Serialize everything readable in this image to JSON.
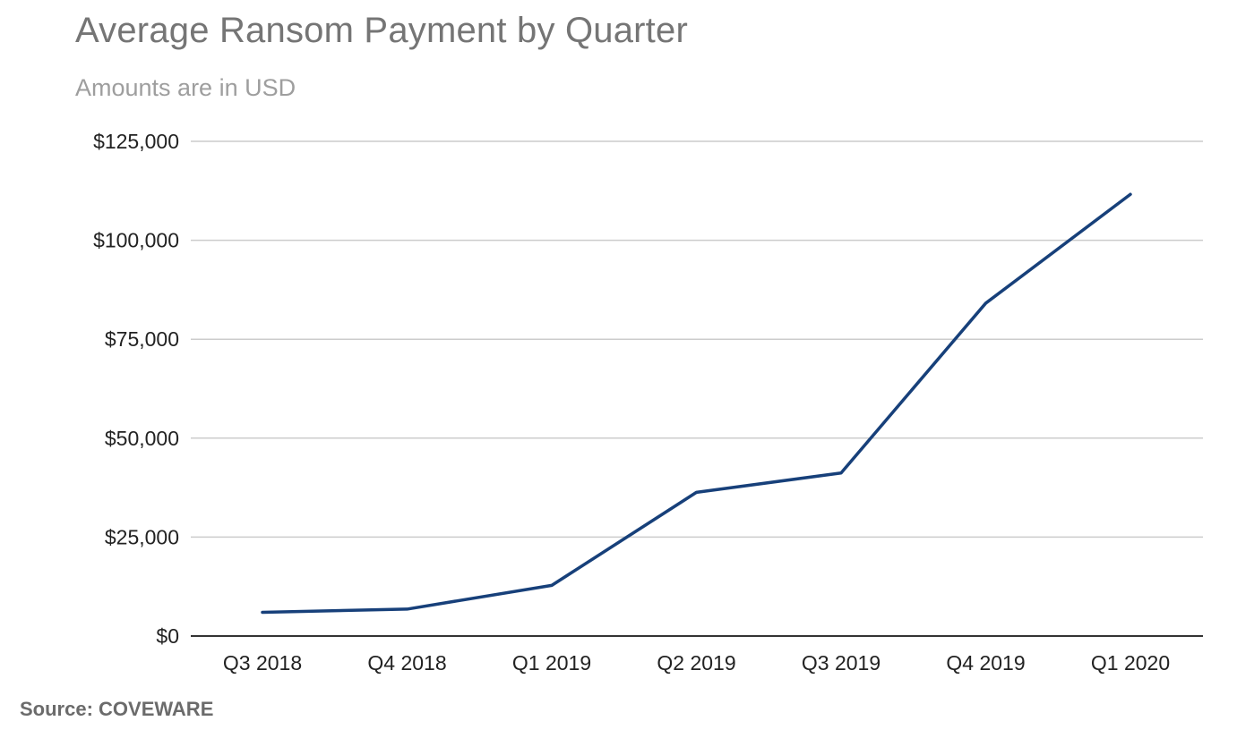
{
  "chart_data": {
    "type": "line",
    "title": "Average Ransom Payment by Quarter",
    "subtitle": "Amounts are in USD",
    "xlabel": "",
    "ylabel": "",
    "categories": [
      "Q3 2018",
      "Q4 2018",
      "Q1 2019",
      "Q2 2019",
      "Q3 2019",
      "Q4 2019",
      "Q1 2020"
    ],
    "series": [
      {
        "values": [
          6000,
          6800,
          12800,
          36300,
          41200,
          84100,
          111600
        ],
        "color": "#17407a"
      }
    ],
    "ylim": [
      0,
      125000
    ],
    "yticks": [
      0,
      25000,
      50000,
      75000,
      100000,
      125000
    ],
    "ytick_labels": [
      "$0",
      "$25,000",
      "$50,000",
      "$75,000",
      "$100,000",
      "$125,000"
    ],
    "grid": true,
    "legend": "none"
  },
  "source": "Source: COVEWARE"
}
